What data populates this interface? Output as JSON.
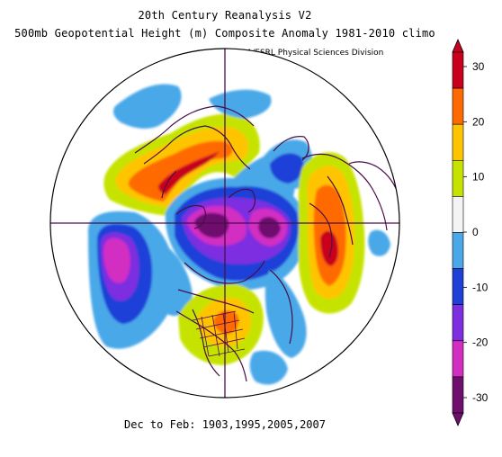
{
  "title_line1": "20th Century Reanalysis V2",
  "title_line2": "500mb Geopotential Height (m) Composite Anomaly 1981-2010 climo",
  "credit": "NOAA/ESRL Physical Sciences Division",
  "footer": "Dec to Feb: 1903,1995,2005,2007",
  "colorbar": {
    "tick_labels": [
      "30",
      "20",
      "10",
      "0",
      "-10",
      "-20",
      "-30"
    ],
    "colors": [
      "#c8001e",
      "#ff6a00",
      "#ffc400",
      "#c6e300",
      "#f4f4f4",
      "#4aa8e8",
      "#1e3fd8",
      "#7d2ee0",
      "#d22fc2",
      "#6e0f6e"
    ]
  }
}
